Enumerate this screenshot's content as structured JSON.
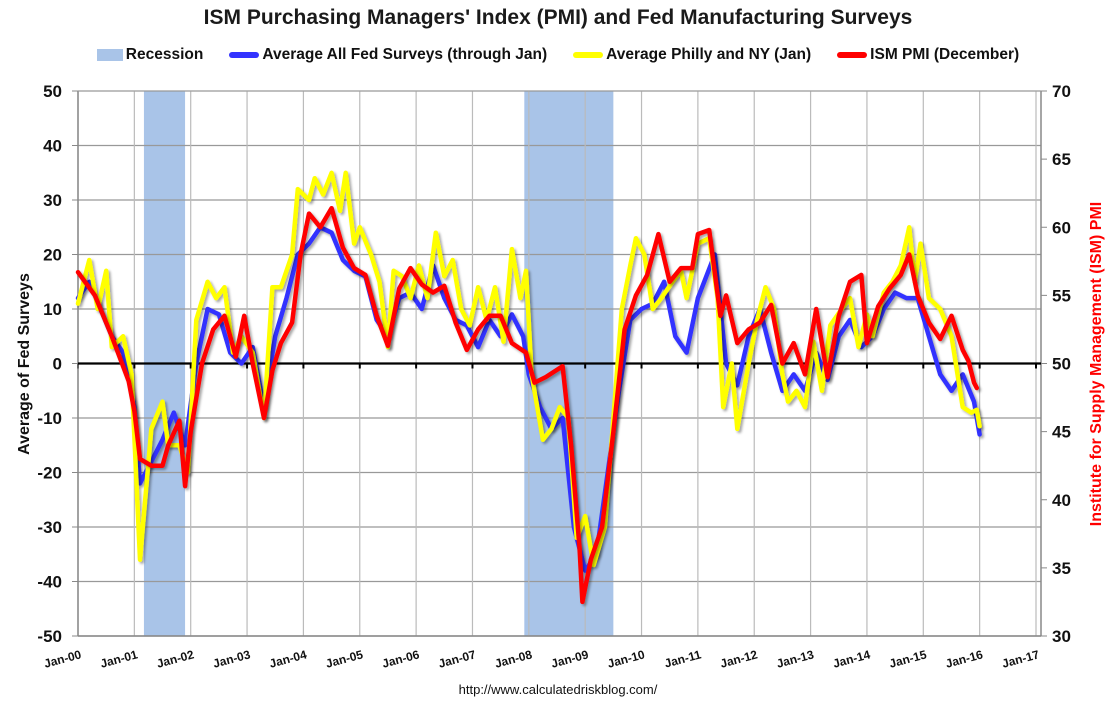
{
  "chart_data": {
    "type": "line",
    "title": "ISM Purchasing Managers' Index (PMI) and Fed Manufacturing Surveys",
    "ylabel": "Average of Fed Surveys",
    "y2label": "Institute for Supply Management (ISM) PMI",
    "ylim": [
      -50,
      50
    ],
    "y2lim": [
      30,
      70
    ],
    "yticks": [
      "50",
      "40",
      "30",
      "20",
      "10",
      "0",
      "-10",
      "-20",
      "-30",
      "-40",
      "-50"
    ],
    "y2ticks": [
      "70",
      "65",
      "60",
      "55",
      "50",
      "45",
      "40",
      "35",
      "30"
    ],
    "xticks": [
      "Jan-00",
      "Jan-01",
      "Jan-02",
      "Jan-03",
      "Jan-04",
      "Jan-05",
      "Jan-06",
      "Jan-07",
      "Jan-08",
      "Jan-09",
      "Jan-10",
      "Jan-11",
      "Jan-12",
      "Jan-13",
      "Jan-14",
      "Jan-15",
      "Jan-16",
      "Jan-17"
    ],
    "xlim": [
      2000,
      2017
    ],
    "grid": true,
    "legend_position": "top",
    "recessions": [
      [
        2001.17,
        2001.9
      ],
      [
        2007.92,
        2009.5
      ]
    ],
    "recession_label": "Recession",
    "recession_color": "#a9c4e8",
    "series": [
      {
        "name": "Average All Fed Surveys (through Jan)",
        "color": "#3333ff",
        "axis": "left",
        "x": [
          2000.0,
          2000.2,
          2000.4,
          2000.6,
          2000.8,
          2001.0,
          2001.1,
          2001.3,
          2001.5,
          2001.7,
          2001.9,
          2002.1,
          2002.3,
          2002.5,
          2002.7,
          2002.9,
          2003.1,
          2003.3,
          2003.5,
          2003.7,
          2003.9,
          2004.1,
          2004.3,
          2004.5,
          2004.7,
          2004.9,
          2005.1,
          2005.3,
          2005.5,
          2005.7,
          2005.9,
          2006.1,
          2006.3,
          2006.5,
          2006.7,
          2006.9,
          2007.1,
          2007.3,
          2007.5,
          2007.7,
          2007.9,
          2008.0,
          2008.2,
          2008.4,
          2008.6,
          2008.8,
          2009.0,
          2009.2,
          2009.4,
          2009.6,
          2009.8,
          2010.0,
          2010.2,
          2010.4,
          2010.6,
          2010.8,
          2011.0,
          2011.3,
          2011.5,
          2011.7,
          2011.9,
          2012.1,
          2012.3,
          2012.5,
          2012.7,
          2012.9,
          2013.1,
          2013.3,
          2013.5,
          2013.7,
          2013.9,
          2014.1,
          2014.3,
          2014.5,
          2014.7,
          2014.9,
          2015.1,
          2015.3,
          2015.5,
          2015.7,
          2015.9,
          2016.0
        ],
        "y": [
          12,
          15,
          10,
          5,
          2,
          -8,
          -22,
          -18,
          -14,
          -9,
          -15,
          0,
          10,
          9,
          2,
          0,
          3,
          -8,
          5,
          12,
          20,
          22,
          25,
          24,
          19,
          17,
          16,
          8,
          5,
          12,
          13,
          10,
          18,
          12,
          8,
          7,
          3,
          8,
          5,
          9,
          5,
          -2,
          -8,
          -12,
          -10,
          -30,
          -38,
          -35,
          -20,
          -5,
          8,
          10,
          11,
          15,
          5,
          2,
          12,
          20,
          0,
          -4,
          5,
          10,
          2,
          -5,
          -2,
          -5,
          2,
          -3,
          5,
          8,
          3,
          5,
          10,
          13,
          12,
          12,
          5,
          -2,
          -5,
          -2,
          -7,
          -13
        ]
      },
      {
        "name": "Average Philly and NY (Jan)",
        "color": "#ffff00",
        "axis": "left",
        "x": [
          2000.0,
          2000.2,
          2000.35,
          2000.5,
          2000.6,
          2000.8,
          2000.95,
          2001.1,
          2001.3,
          2001.5,
          2001.6,
          2001.8,
          2001.95,
          2002.1,
          2002.3,
          2002.45,
          2002.6,
          2002.75,
          2002.9,
          2003.1,
          2003.3,
          2003.45,
          2003.6,
          2003.8,
          2003.9,
          2004.1,
          2004.2,
          2004.35,
          2004.5,
          2004.65,
          2004.75,
          2004.9,
          2005.0,
          2005.2,
          2005.35,
          2005.5,
          2005.6,
          2005.75,
          2005.9,
          2006.05,
          2006.2,
          2006.35,
          2006.5,
          2006.65,
          2006.8,
          2006.95,
          2007.1,
          2007.25,
          2007.4,
          2007.55,
          2007.7,
          2007.85,
          2007.95,
          2008.05,
          2008.25,
          2008.4,
          2008.55,
          2008.7,
          2008.85,
          2009.0,
          2009.15,
          2009.35,
          2009.5,
          2009.65,
          2009.8,
          2009.9,
          2010.05,
          2010.2,
          2010.35,
          2010.55,
          2010.7,
          2010.8,
          2011.0,
          2011.2,
          2011.35,
          2011.45,
          2011.6,
          2011.7,
          2011.9,
          2012.05,
          2012.2,
          2012.35,
          2012.5,
          2012.6,
          2012.75,
          2012.9,
          2013.05,
          2013.2,
          2013.35,
          2013.55,
          2013.7,
          2013.85,
          2014.0,
          2014.1,
          2014.3,
          2014.45,
          2014.6,
          2014.75,
          2014.85,
          2014.95,
          2015.1,
          2015.3,
          2015.5,
          2015.7,
          2015.85,
          2015.95,
          2016.0
        ],
        "y": [
          11,
          19,
          10,
          17,
          3,
          5,
          -2,
          -36,
          -12,
          -7,
          -15,
          -15,
          -20,
          8,
          15,
          12,
          14,
          2,
          5,
          2,
          -10,
          14,
          14,
          20,
          32,
          30,
          34,
          31,
          35,
          28,
          35,
          22,
          25,
          20,
          15,
          3,
          17,
          16,
          12,
          18,
          12,
          24,
          16,
          19,
          10,
          7,
          14,
          8,
          14,
          4,
          21,
          12,
          17,
          -2,
          -14,
          -12,
          -8,
          -10,
          -32,
          -28,
          -37,
          -30,
          -10,
          10,
          18,
          23,
          20,
          10,
          12,
          15,
          17,
          12,
          22,
          23,
          12,
          -8,
          0,
          -12,
          0,
          8,
          14,
          10,
          -2,
          -7,
          -5,
          -8,
          4,
          -5,
          7,
          10,
          12,
          3,
          9,
          5,
          13,
          15,
          18,
          25,
          15,
          22,
          12,
          10,
          5,
          -8,
          -9,
          -8.5,
          -11.5
        ]
      },
      {
        "name": "ISM PMI (December)",
        "color": "#ff0000",
        "axis": "right",
        "x": [
          2000.0,
          2000.3,
          2000.6,
          2000.9,
          2001.0,
          2001.1,
          2001.3,
          2001.5,
          2001.6,
          2001.8,
          2001.9,
          2002.0,
          2002.2,
          2002.4,
          2002.6,
          2002.8,
          2002.95,
          2003.1,
          2003.3,
          2003.45,
          2003.6,
          2003.8,
          2003.95,
          2004.1,
          2004.3,
          2004.5,
          2004.7,
          2004.9,
          2005.1,
          2005.3,
          2005.5,
          2005.7,
          2005.9,
          2006.1,
          2006.3,
          2006.5,
          2006.7,
          2006.9,
          2007.1,
          2007.3,
          2007.5,
          2007.7,
          2007.95,
          2008.1,
          2008.3,
          2008.6,
          2008.75,
          2008.9,
          2008.95,
          2009.1,
          2009.3,
          2009.5,
          2009.7,
          2009.9,
          2010.1,
          2010.3,
          2010.5,
          2010.7,
          2010.9,
          2011.0,
          2011.2,
          2011.4,
          2011.5,
          2011.7,
          2011.9,
          2012.1,
          2012.3,
          2012.5,
          2012.7,
          2012.9,
          2013.1,
          2013.3,
          2013.5,
          2013.7,
          2013.9,
          2014.0,
          2014.2,
          2014.4,
          2014.6,
          2014.75,
          2014.9,
          2015.1,
          2015.3,
          2015.5,
          2015.7,
          2015.8,
          2015.9,
          2015.95
        ],
        "y": [
          56.7,
          55,
          52,
          48.7,
          46.5,
          43,
          42.5,
          42.5,
          44,
          45.8,
          41,
          45,
          50,
          52.5,
          53.5,
          50.5,
          53.5,
          50,
          46,
          49.5,
          51.5,
          53,
          58,
          61,
          60,
          61.4,
          58.5,
          57,
          56.5,
          53.5,
          51.3,
          55.5,
          57,
          55.8,
          55.2,
          55.7,
          53,
          51,
          52.5,
          53.5,
          53.5,
          51.5,
          50.8,
          48.6,
          49,
          49.8,
          44,
          36.5,
          32.5,
          35.6,
          38,
          45,
          52.5,
          55,
          56.5,
          59.5,
          56,
          57,
          57,
          59.5,
          59.8,
          53.5,
          55,
          51.5,
          52.5,
          53,
          54.3,
          50,
          51.5,
          49.2,
          54,
          49,
          53.5,
          56,
          56.5,
          51.5,
          54.2,
          55.5,
          56.5,
          58,
          55,
          53,
          51.8,
          53.5,
          51,
          50.2,
          48.6,
          48.2
        ]
      }
    ]
  },
  "footer": "http://www.calculatedriskblog.com/"
}
